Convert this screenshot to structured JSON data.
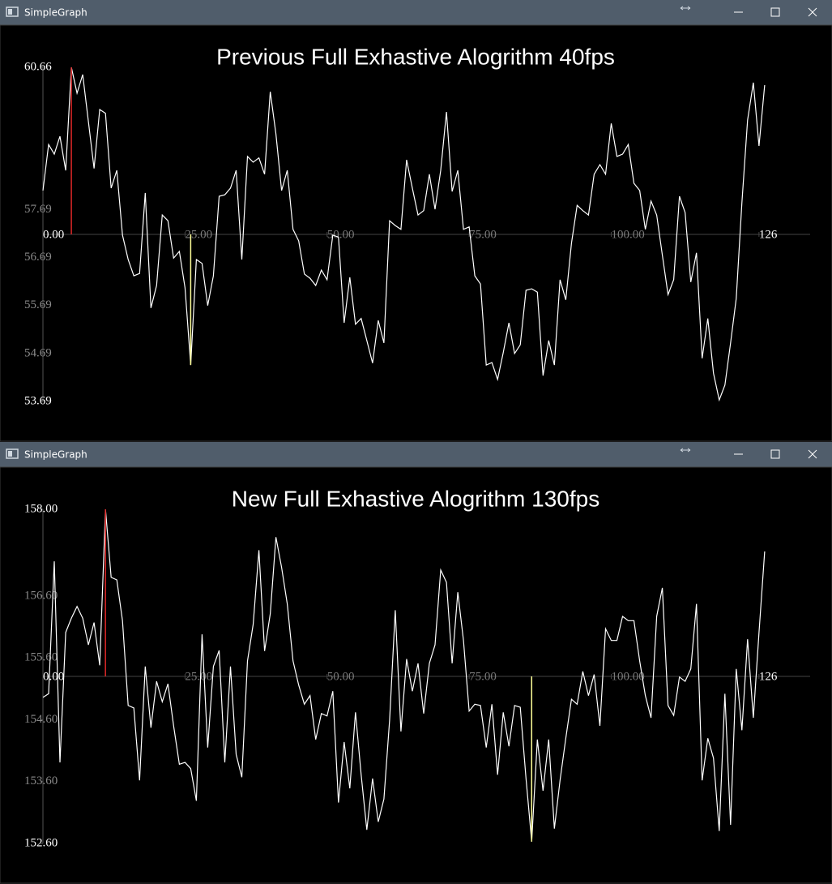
{
  "windows": [
    {
      "title": "SimpleGraph"
    },
    {
      "title": "SimpleGraph"
    }
  ],
  "chart_data": [
    {
      "type": "line",
      "title": "Previous Full Exhastive Alogrithm 40fps",
      "color": "#ffffff",
      "values": [
        58.09,
        59.05,
        58.85,
        59.22,
        58.51,
        60.66,
        60.12,
        60.51,
        59.53,
        58.55,
        59.78,
        59.7,
        58.14,
        58.51,
        57.16,
        56.65,
        56.31,
        56.36,
        58.04,
        55.64,
        56.11,
        57.58,
        57.46,
        56.68,
        56.82,
        56.06,
        54.45,
        56.65,
        56.57,
        55.69,
        56.31,
        57.97,
        58.0,
        58.14,
        58.51,
        56.65,
        58.8,
        58.68,
        58.77,
        58.43,
        60.15,
        59.27,
        58.09,
        58.51,
        57.28,
        57.04,
        56.35,
        56.26,
        56.11,
        56.43,
        56.23,
        57.16,
        57.12,
        55.33,
        56.28,
        55.3,
        55.42,
        54.96,
        54.49,
        55.38,
        54.91,
        57.46,
        57.36,
        57.28,
        58.73,
        58.14,
        57.58,
        57.67,
        58.43,
        57.7,
        58.51,
        59.73,
        58.07,
        58.51,
        57.28,
        57.33,
        56.31,
        56.14,
        54.45,
        54.5,
        54.15,
        54.71,
        55.33,
        54.69,
        54.87,
        56.01,
        56.04,
        55.97,
        54.23,
        54.96,
        54.45,
        56.23,
        55.81,
        56.99,
        57.78,
        57.67,
        57.58,
        58.43,
        58.63,
        58.43,
        59.49,
        58.8,
        58.85,
        59.05,
        58.24,
        58.09,
        57.28,
        57.87,
        57.58,
        56.74,
        55.92,
        56.23,
        57.97,
        57.63,
        56.18,
        56.79,
        54.59,
        55.42,
        54.28,
        53.72,
        54.03,
        54.91,
        55.84,
        57.84,
        59.56,
        60.34,
        59.02,
        60.29
      ],
      "ylim": [
        53.69,
        60.66
      ],
      "yticks": [
        60.66,
        57.69,
        56.69,
        55.69,
        54.69,
        53.69
      ],
      "xlim": [
        0,
        135
      ],
      "xticks": [
        {
          "value": 0,
          "label": "0.00"
        },
        {
          "value": 25,
          "label": "25.00"
        },
        {
          "value": 50,
          "label": "50.00"
        },
        {
          "value": 75,
          "label": "75.00"
        },
        {
          "value": 100,
          "label": "100.00"
        },
        126
      ],
      "highlights": [
        {
          "index": 5,
          "color": "#e02828"
        },
        {
          "index": 26,
          "color": "#ffff99"
        }
      ]
    },
    {
      "type": "line",
      "title": "New Full Exhastive Alogrithm 130fps",
      "color": "#ffffff",
      "values": [
        154.96,
        155.02,
        157.16,
        153.91,
        156.01,
        156.24,
        156.43,
        156.24,
        155.81,
        156.17,
        155.48,
        158.0,
        156.9,
        156.86,
        156.2,
        154.83,
        154.79,
        153.62,
        155.46,
        154.47,
        155.22,
        154.89,
        155.18,
        154.5,
        153.88,
        153.91,
        153.81,
        153.29,
        155.98,
        154.15,
        155.46,
        155.72,
        153.91,
        155.46,
        154.04,
        153.67,
        155.55,
        156.14,
        157.34,
        155.71,
        156.31,
        157.55,
        157.06,
        156.47,
        155.55,
        155.16,
        154.85,
        154.99,
        154.28,
        154.7,
        154.66,
        155.06,
        153.26,
        154.24,
        153.49,
        154.72,
        153.71,
        152.82,
        153.65,
        152.95,
        153.32,
        154.59,
        156.37,
        154.41,
        155.58,
        155.06,
        155.51,
        154.7,
        155.51,
        155.81,
        157.02,
        156.82,
        155.51,
        156.66,
        155.88,
        154.74,
        154.85,
        154.83,
        154.15,
        154.85,
        153.71,
        154.72,
        154.17,
        154.83,
        154.8,
        153.65,
        152.63,
        154.28,
        153.45,
        154.28,
        152.84,
        153.62,
        154.3,
        154.93,
        154.85,
        155.38,
        154.99,
        155.33,
        154.5,
        156.07,
        155.88,
        155.88,
        156.27,
        156.2,
        156.2,
        155.55,
        154.99,
        154.63,
        156.27,
        156.73,
        154.83,
        154.67,
        155.29,
        155.22,
        155.42,
        156.47,
        153.62,
        154.3,
        153.98,
        152.8,
        155.02,
        152.9,
        155.42,
        154.43,
        155.9,
        154.63,
        156.01,
        157.32
      ],
      "ylim": [
        152.6,
        158
      ],
      "yticks": [
        {
          "value": 158,
          "label": "158.00"
        },
        {
          "value": 156.6,
          "label": "156.60"
        },
        {
          "value": 155.6,
          "label": "155.60"
        },
        {
          "value": 154.6,
          "label": "154.60"
        },
        {
          "value": 153.6,
          "label": "153.60"
        },
        {
          "value": 152.6,
          "label": "152.60"
        }
      ],
      "xlim": [
        0,
        135
      ],
      "xticks": [
        {
          "value": 0,
          "label": "0.00"
        },
        {
          "value": 25,
          "label": "25.00"
        },
        {
          "value": 50,
          "label": "50.00"
        },
        {
          "value": 75,
          "label": "75.00"
        },
        {
          "value": 100,
          "label": "100.00"
        },
        126
      ],
      "highlights": [
        {
          "index": 11,
          "color": "#e02828"
        },
        {
          "index": 86,
          "color": "#ffff99"
        }
      ]
    }
  ]
}
